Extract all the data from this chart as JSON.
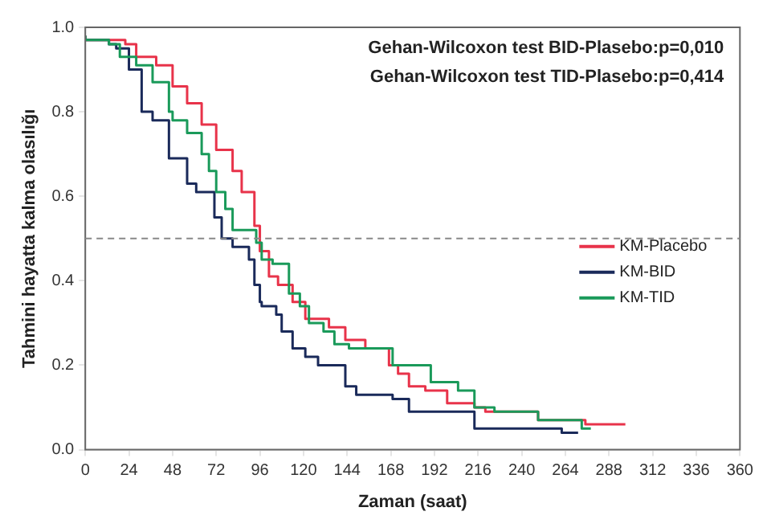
{
  "chart_data": {
    "type": "step",
    "xlabel": "Zaman (saat)",
    "ylabel": "Tahmini hayatta kalma olasılığı",
    "annotations": [
      "Gehan-Wilcoxon test BID-Plasebo:p=0,010",
      "Gehan-Wilcoxon test TID-Plasebo:p=0,414"
    ],
    "xlim": [
      0,
      360
    ],
    "xticks": [
      0,
      24,
      48,
      72,
      96,
      120,
      144,
      168,
      192,
      216,
      240,
      264,
      288,
      312,
      336,
      360
    ],
    "ylim": [
      0,
      1
    ],
    "yticks": [
      {
        "value": 0,
        "label": "0.0"
      },
      {
        "value": 0.2,
        "label": "0.2"
      },
      {
        "value": 0.4,
        "label": "0.4"
      },
      {
        "value": 0.6,
        "label": "0.6"
      },
      {
        "value": 0.8,
        "label": "0.8"
      },
      {
        "value": 1,
        "label": "1.0"
      }
    ],
    "ref_lines": [
      {
        "axis": "y",
        "value": 0.5,
        "color": "#888888",
        "line_style": "dashed"
      }
    ],
    "legend": "right",
    "grid": false,
    "marker": "none",
    "series": [
      {
        "name": "KM-Placebo",
        "color": "#e8334a",
        "x": [
          0,
          22,
          28,
          39,
          48,
          56,
          64,
          72,
          81,
          86,
          93,
          96,
          101,
          106,
          114,
          121,
          134,
          143,
          154,
          167,
          172,
          178,
          187,
          199,
          214,
          220,
          249,
          275,
          297
        ],
        "values": [
          0.98,
          0.97,
          0.96,
          0.93,
          0.91,
          0.86,
          0.82,
          0.77,
          0.71,
          0.66,
          0.61,
          0.53,
          0.47,
          0.41,
          0.39,
          0.35,
          0.31,
          0.29,
          0.26,
          0.24,
          0.2,
          0.18,
          0.15,
          0.14,
          0.11,
          0.1,
          0.09,
          0.07,
          0.06
        ]
      },
      {
        "name": "KM-BID",
        "color": "#1a2a5a",
        "x": [
          0,
          13,
          17,
          24,
          31,
          37,
          46,
          56,
          61,
          71,
          75,
          81,
          90,
          93,
          96,
          97,
          105,
          108,
          114,
          121,
          128,
          143,
          149,
          169,
          178,
          187,
          214,
          227,
          262,
          271
        ],
        "values": [
          0.98,
          0.97,
          0.96,
          0.95,
          0.9,
          0.8,
          0.78,
          0.69,
          0.63,
          0.61,
          0.55,
          0.5,
          0.48,
          0.45,
          0.39,
          0.35,
          0.34,
          0.32,
          0.28,
          0.24,
          0.22,
          0.2,
          0.15,
          0.13,
          0.12,
          0.09,
          0.09,
          0.05,
          0.05,
          0.04
        ]
      },
      {
        "name": "KM-TID",
        "color": "#1a9a5a",
        "x": [
          0,
          13,
          19,
          28,
          37,
          46,
          48,
          56,
          64,
          68,
          72,
          77,
          81,
          84,
          94,
          97,
          103,
          112,
          118,
          123,
          131,
          137,
          145,
          169,
          178,
          190,
          205,
          214,
          225,
          249,
          252,
          273,
          278
        ],
        "values": [
          0.98,
          0.97,
          0.96,
          0.93,
          0.91,
          0.87,
          0.8,
          0.78,
          0.75,
          0.7,
          0.66,
          0.61,
          0.57,
          0.52,
          0.52,
          0.49,
          0.45,
          0.44,
          0.37,
          0.34,
          0.3,
          0.28,
          0.25,
          0.24,
          0.2,
          0.2,
          0.16,
          0.14,
          0.1,
          0.09,
          0.07,
          0.07,
          0.05
        ]
      }
    ]
  }
}
